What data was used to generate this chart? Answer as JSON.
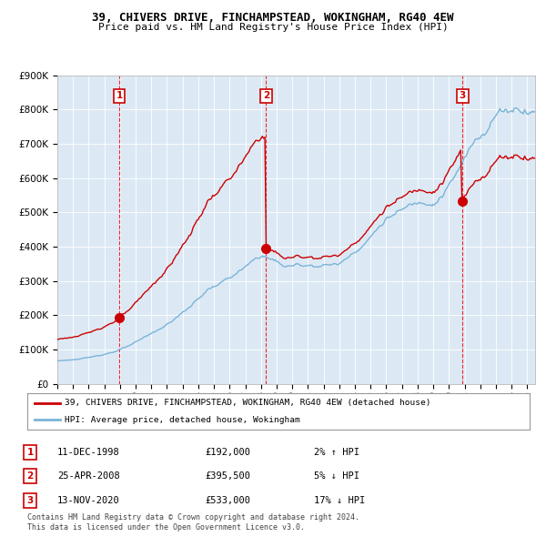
{
  "title1": "39, CHIVERS DRIVE, FINCHAMPSTEAD, WOKINGHAM, RG40 4EW",
  "title2": "Price paid vs. HM Land Registry's House Price Index (HPI)",
  "background_color": "#dce9f5",
  "red_line_color": "#cc0000",
  "blue_line_color": "#7ab4d8",
  "grid_color": "white",
  "red_line_label": "39, CHIVERS DRIVE, FINCHAMPSTEAD, WOKINGHAM, RG40 4EW (detached house)",
  "blue_line_label": "HPI: Average price, detached house, Wokingham",
  "transactions": [
    {
      "num": 1,
      "date": "11-DEC-1998",
      "price": 192000,
      "hpi_rel": "2% ↑ HPI",
      "x_year": 1998.95
    },
    {
      "num": 2,
      "date": "25-APR-2008",
      "price": 395500,
      "hpi_rel": "5% ↓ HPI",
      "x_year": 2008.32
    },
    {
      "num": 3,
      "date": "13-NOV-2020",
      "price": 533000,
      "hpi_rel": "17% ↓ HPI",
      "x_year": 2020.87
    }
  ],
  "ylim": [
    0,
    900000
  ],
  "xlim_start": 1995.0,
  "xlim_end": 2025.5,
  "footer1": "Contains HM Land Registry data © Crown copyright and database right 2024.",
  "footer2": "This data is licensed under the Open Government Licence v3.0."
}
